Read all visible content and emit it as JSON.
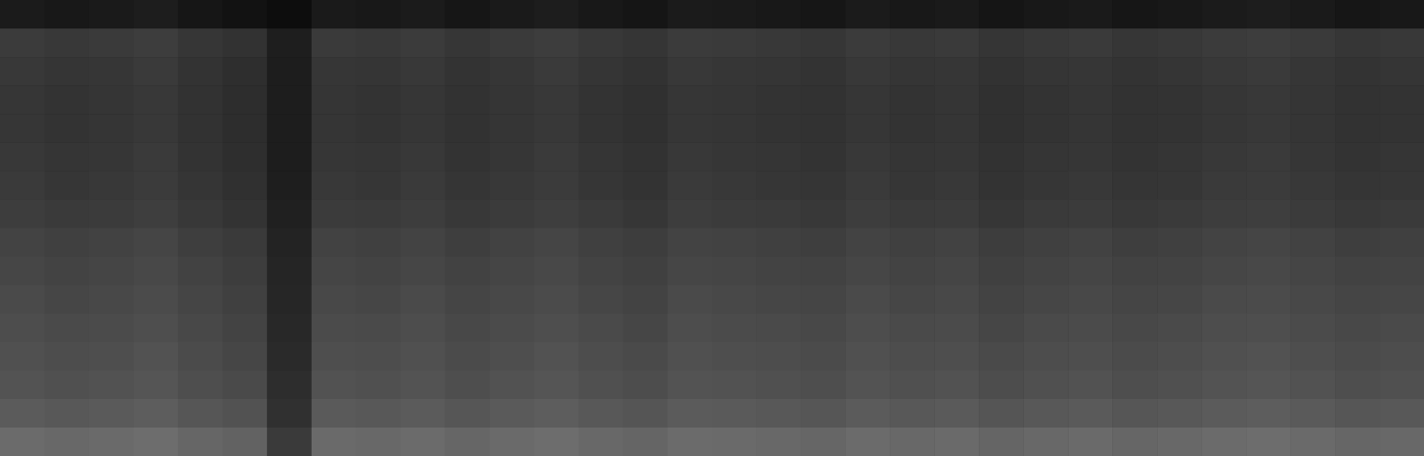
{
  "chart_data": {
    "type": "heatmap",
    "tick_labels": false,
    "zlim": [
      0,
      100
    ],
    "color": "#a0a0a0",
    "cells": [
      [
        17,
        15,
        16,
        18,
        14,
        11,
        8,
        16,
        15,
        17,
        14,
        16,
        18,
        15,
        13,
        17,
        16,
        15,
        14,
        17,
        15,
        16,
        13,
        15,
        16,
        14,
        15,
        17,
        18,
        16,
        14,
        15
      ],
      [
        37,
        35,
        36,
        38,
        34,
        31,
        19,
        36,
        35,
        37,
        34,
        36,
        38,
        35,
        33,
        37,
        36,
        35,
        34,
        37,
        35,
        36,
        33,
        35,
        36,
        34,
        35,
        37,
        38,
        36,
        34,
        35
      ],
      [
        35,
        33,
        34,
        36,
        32,
        29,
        18,
        34,
        33,
        35,
        32,
        34,
        36,
        33,
        31,
        35,
        34,
        33,
        32,
        35,
        33,
        34,
        31,
        33,
        34,
        32,
        33,
        35,
        36,
        34,
        32,
        33
      ],
      [
        34,
        32,
        33,
        35,
        31,
        28,
        18,
        33,
        32,
        34,
        31,
        33,
        35,
        32,
        30,
        34,
        33,
        32,
        31,
        34,
        32,
        33,
        30,
        32,
        33,
        31,
        32,
        34,
        35,
        33,
        31,
        32
      ],
      [
        34,
        32,
        33,
        35,
        31,
        28,
        18,
        33,
        32,
        34,
        31,
        33,
        35,
        32,
        30,
        34,
        33,
        32,
        31,
        34,
        32,
        33,
        30,
        32,
        33,
        31,
        32,
        34,
        35,
        33,
        31,
        32
      ],
      [
        35,
        33,
        34,
        36,
        32,
        29,
        18,
        34,
        33,
        35,
        32,
        34,
        36,
        33,
        31,
        35,
        34,
        33,
        32,
        35,
        33,
        34,
        31,
        33,
        34,
        32,
        33,
        35,
        36,
        34,
        32,
        33
      ],
      [
        36,
        34,
        35,
        37,
        33,
        30,
        19,
        35,
        34,
        36,
        33,
        35,
        37,
        34,
        32,
        36,
        35,
        34,
        33,
        36,
        34,
        35,
        32,
        34,
        35,
        33,
        34,
        36,
        37,
        35,
        33,
        34
      ],
      [
        38,
        36,
        37,
        39,
        35,
        32,
        20,
        37,
        36,
        38,
        35,
        37,
        39,
        36,
        34,
        38,
        37,
        36,
        35,
        38,
        36,
        37,
        34,
        36,
        37,
        35,
        36,
        38,
        39,
        37,
        35,
        36
      ],
      [
        42,
        40,
        41,
        43,
        39,
        36,
        22,
        41,
        40,
        42,
        39,
        41,
        43,
        40,
        38,
        42,
        41,
        40,
        39,
        42,
        40,
        41,
        38,
        40,
        41,
        39,
        40,
        42,
        43,
        41,
        39,
        40
      ],
      [
        44,
        42,
        43,
        45,
        41,
        38,
        23,
        43,
        42,
        44,
        41,
        43,
        45,
        42,
        40,
        44,
        43,
        42,
        41,
        44,
        42,
        43,
        40,
        42,
        43,
        41,
        42,
        44,
        45,
        43,
        41,
        42
      ],
      [
        46,
        44,
        45,
        47,
        43,
        40,
        24,
        45,
        44,
        46,
        43,
        45,
        47,
        44,
        42,
        46,
        45,
        44,
        43,
        46,
        44,
        45,
        42,
        44,
        45,
        43,
        44,
        46,
        47,
        45,
        43,
        44
      ],
      [
        48,
        46,
        47,
        49,
        45,
        42,
        25,
        47,
        46,
        48,
        45,
        47,
        49,
        46,
        44,
        48,
        47,
        46,
        45,
        48,
        46,
        47,
        44,
        46,
        47,
        45,
        46,
        48,
        49,
        47,
        45,
        46
      ],
      [
        50,
        48,
        49,
        51,
        47,
        44,
        26,
        49,
        48,
        50,
        47,
        49,
        51,
        48,
        46,
        50,
        49,
        48,
        47,
        50,
        48,
        49,
        46,
        48,
        49,
        47,
        48,
        50,
        51,
        49,
        47,
        48
      ],
      [
        52,
        50,
        51,
        53,
        49,
        46,
        28,
        51,
        50,
        52,
        49,
        51,
        53,
        50,
        48,
        52,
        51,
        50,
        49,
        52,
        50,
        51,
        48,
        50,
        51,
        49,
        50,
        52,
        53,
        51,
        49,
        50
      ],
      [
        57,
        55,
        56,
        58,
        54,
        51,
        30,
        56,
        55,
        57,
        54,
        56,
        58,
        55,
        53,
        57,
        56,
        55,
        54,
        57,
        55,
        56,
        53,
        55,
        56,
        54,
        55,
        57,
        58,
        56,
        54,
        55
      ],
      [
        67,
        65,
        66,
        68,
        64,
        61,
        36,
        66,
        65,
        67,
        64,
        66,
        68,
        65,
        63,
        67,
        66,
        65,
        64,
        67,
        65,
        66,
        63,
        65,
        66,
        64,
        65,
        67,
        68,
        66,
        64,
        65
      ]
    ]
  }
}
